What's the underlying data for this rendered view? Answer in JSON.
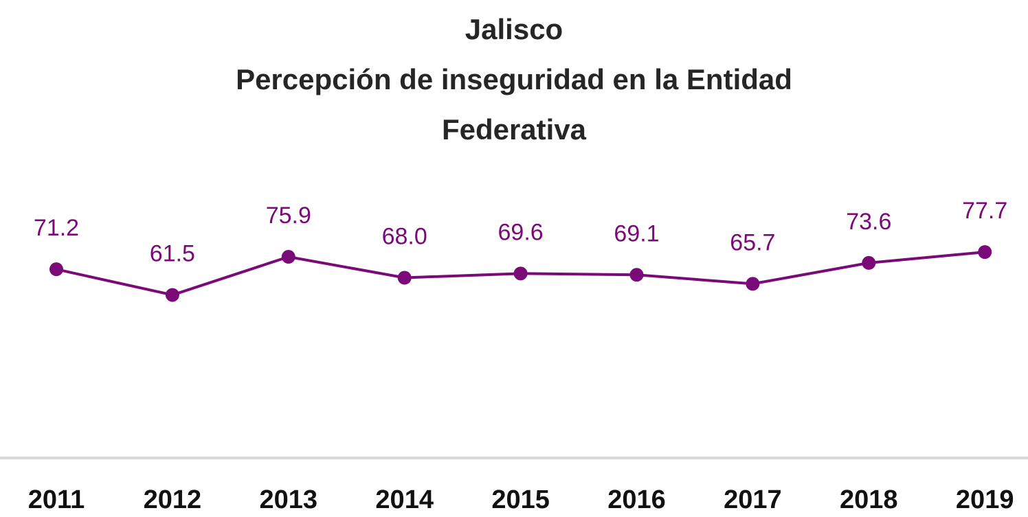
{
  "chart_data": {
    "type": "line",
    "title": "Jalisco",
    "subtitle": "Percepción de inseguridad en la Entidad Federativa",
    "categories": [
      "2011",
      "2012",
      "2013",
      "2014",
      "2015",
      "2016",
      "2017",
      "2018",
      "2019"
    ],
    "values": [
      71.2,
      61.5,
      75.9,
      68.0,
      69.6,
      69.1,
      65.7,
      73.6,
      77.7
    ],
    "value_labels": [
      "71.2",
      "61.5",
      "75.9",
      "68.0",
      "69.6",
      "69.1",
      "65.7",
      "73.6",
      "77.7"
    ],
    "color": "#7a0a78",
    "ylim": [
      0,
      100
    ]
  }
}
